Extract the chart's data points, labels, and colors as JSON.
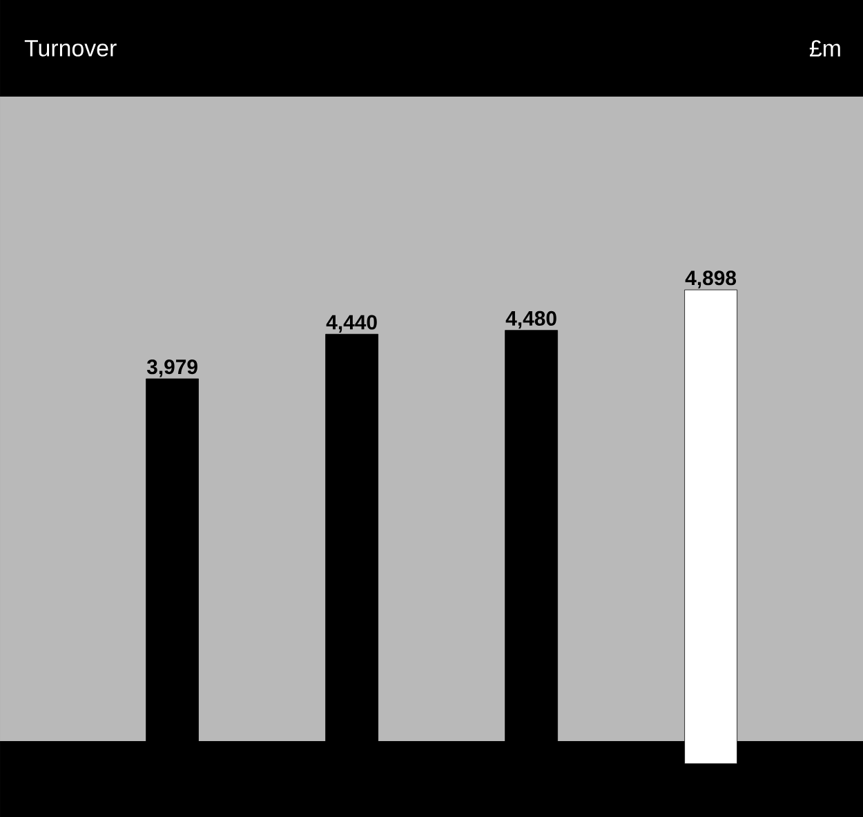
{
  "chart_data": {
    "type": "bar",
    "title": "Turnover",
    "annotations": [
      "£m"
    ],
    "categories": [
      null,
      null,
      null,
      null
    ],
    "values": [
      3979,
      4440,
      4480,
      4898
    ],
    "value_labels": [
      "3,979",
      "4,440",
      "4,480",
      "4,898"
    ],
    "colors": [
      "#000000",
      "#000000",
      "#000000",
      "#ffffff"
    ]
  }
}
